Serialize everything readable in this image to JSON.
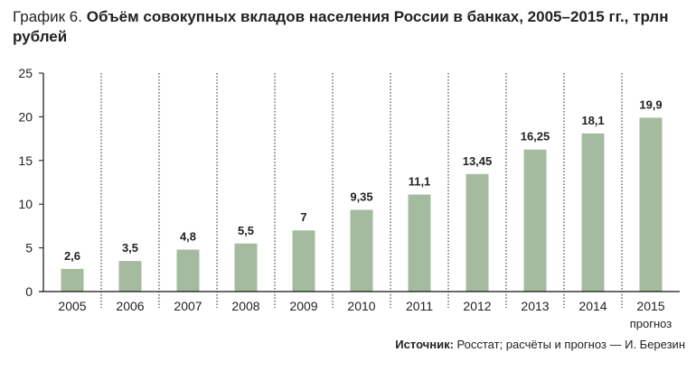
{
  "title": {
    "label": "График 6.",
    "main": "Объём совокупных вкладов населения России в банках, 2005–2015 гг., трлн рублей"
  },
  "source": {
    "label": "Источник:",
    "text": "Росстат; расчёты и прогноз — И. Березин"
  },
  "colors": {
    "bar": "#a5bb9f",
    "grid": "#222222",
    "axis": "#111111"
  },
  "chart_data": {
    "type": "bar",
    "categories": [
      "2005",
      "2006",
      "2007",
      "2008",
      "2009",
      "2010",
      "2011",
      "2012",
      "2013",
      "2014",
      "2015"
    ],
    "values": [
      2.6,
      3.5,
      4.8,
      5.5,
      7,
      9.35,
      11.1,
      13.45,
      16.25,
      18.1,
      19.9
    ],
    "value_labels": [
      "2,6",
      "3,5",
      "4,8",
      "5,5",
      "7",
      "9,35",
      "11,1",
      "13,45",
      "16,25",
      "18,1",
      "19,9"
    ],
    "category_notes": [
      "",
      "",
      "",
      "",
      "",
      "",
      "",
      "",
      "",
      "",
      "прогноз"
    ],
    "ylim": [
      0,
      25
    ],
    "yticks": [
      0,
      5,
      10,
      15,
      20,
      25
    ],
    "grid": "vertical-dashed",
    "legend": "none"
  }
}
